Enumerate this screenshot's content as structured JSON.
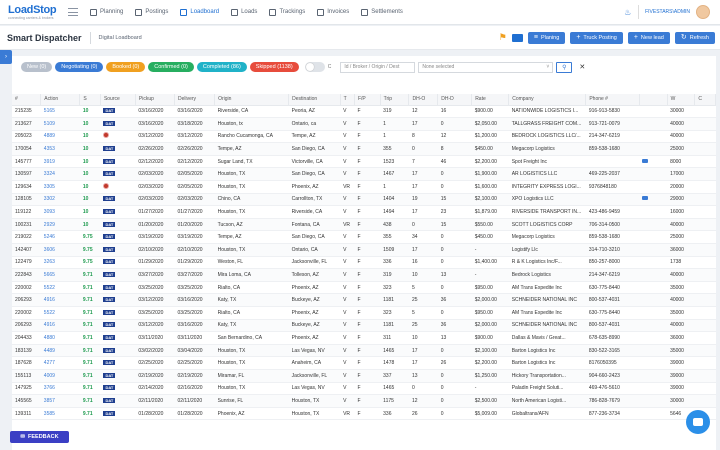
{
  "brand": {
    "name": "LoadStop",
    "tagline": "connecting carriers & brokers"
  },
  "nav": [
    {
      "label": "Planning"
    },
    {
      "label": "Postings"
    },
    {
      "label": "Loadboard"
    },
    {
      "label": "Loads"
    },
    {
      "label": "Trackings"
    },
    {
      "label": "Invoices"
    },
    {
      "label": "Settlements"
    }
  ],
  "user": {
    "name": "FIVESTARS\\ADMIN"
  },
  "page": {
    "title": "Smart Dispatcher",
    "breadcrumb": "Digital Loadboard"
  },
  "actions": {
    "planning": "Planing",
    "truck_posting": "Truck Posting",
    "new_lead": "New lead",
    "refresh": "Refresh"
  },
  "filters": {
    "new": "New (0)",
    "negotiating": "Negotiating (0)",
    "booked": "Booked (0)",
    "confirmed": "Confirmed (0)",
    "completed": "Completed (86)",
    "skipped": "Skipped (1138)",
    "toggle_label": "C",
    "search_placeholder": "Id / Broker / Origin / Dest",
    "select_value": "None selected"
  },
  "colors": {
    "new": "#b8c0cc",
    "negotiating": "#3a7bd5",
    "booked": "#f0a020",
    "confirmed": "#27ae60",
    "completed": "#20b2c8",
    "skipped": "#e74c3c"
  },
  "columns": [
    "#",
    "Action",
    "S",
    "Source",
    "Pickup",
    "Delivery",
    "Origin",
    "Destination",
    "T",
    "F/P",
    "Trip",
    "DH-O",
    "DH-D",
    "Rate",
    "Company",
    "Phone #",
    "",
    "W",
    "C"
  ],
  "rows": [
    [
      "215235",
      "5165",
      "10",
      "DAT",
      "03/16/2020",
      "03/16/2020",
      "Riverside, CA",
      "Peoria, AZ",
      "V",
      "F",
      "319",
      "12",
      "16",
      "$900.00",
      "NATIONWIDE LOGISTICS I...",
      "916-913-5830",
      "",
      "30000",
      ""
    ],
    [
      "213627",
      "5109",
      "10",
      "DAT",
      "03/16/2020",
      "03/18/2020",
      "Houston, tx",
      "Ontario, ca",
      "V",
      "F",
      "1",
      "17",
      "0",
      "$2,050.00",
      "TALLGRASS FREIGHT COM...",
      "913-721-0079",
      "",
      "40000",
      ""
    ],
    [
      "205023",
      "4889",
      "10",
      "TQA",
      "03/12/2020",
      "03/12/2020",
      "Rancho Cucamonga, CA",
      "Tempe, AZ",
      "V",
      "F",
      "1",
      "8",
      "12",
      "$1,200.00",
      "BEDROCK LOGISTICS LLC/...",
      "214-347-6219",
      "",
      "40000",
      ""
    ],
    [
      "170054",
      "4353",
      "10",
      "DAT",
      "02/26/2020",
      "02/26/2020",
      "Tempe, AZ",
      "San Diego, CA",
      "V",
      "F",
      "355",
      "0",
      "8",
      "$450.00",
      "Megacorp Logistics",
      "859-538-1680",
      "",
      "25000",
      ""
    ],
    [
      "145777",
      "3919",
      "10",
      "DAT",
      "02/12/2020",
      "02/12/2020",
      "Sugar Land, TX",
      "Victorville, CA",
      "V",
      "F",
      "1523",
      "7",
      "46",
      "$2,200.00",
      "Spot Freight Inc",
      "",
      "MAIL",
      "8000",
      ""
    ],
    [
      "130597",
      "3324",
      "10",
      "DAT",
      "02/03/2020",
      "02/05/2020",
      "Houston, TX",
      "San Diego, CA",
      "V",
      "F",
      "1467",
      "17",
      "0",
      "$1,900.00",
      "AR LOGISTICS LLC",
      "469-225-2037",
      "",
      "17000",
      ""
    ],
    [
      "129634",
      "3305",
      "10",
      "TQA",
      "02/03/2020",
      "02/05/2020",
      "Houston, TX",
      "Phoenix, AZ",
      "VR",
      "F",
      "1",
      "17",
      "0",
      "$1,600.00",
      "INTEGRITY EXPRESS LOGI...",
      "9376848180",
      "",
      "20000",
      ""
    ],
    [
      "128105",
      "3302",
      "10",
      "DAT",
      "02/03/2020",
      "02/03/2020",
      "Chino, CA",
      "Carrollton, TX",
      "V",
      "F",
      "1404",
      "19",
      "15",
      "$2,100.00",
      "XPO Logistics LLC",
      "",
      "MAIL",
      "29000",
      ""
    ],
    [
      "119122",
      "3093",
      "10",
      "DAT",
      "01/27/2020",
      "01/27/2020",
      "Houston, TX",
      "Riverside, CA",
      "V",
      "F",
      "1494",
      "17",
      "23",
      "$1,879.00",
      "RIVERSIDE TRANSPORT IN...",
      "423-486-9459",
      "",
      "16000",
      ""
    ],
    [
      "100231",
      "2929",
      "10",
      "DAT",
      "01/20/2020",
      "01/20/2020",
      "Tucson, AZ",
      "Fontana, CA",
      "VR",
      "F",
      "438",
      "0",
      "15",
      "$550.00",
      "SCOTT LOGISTICS CORP",
      "706-314-0500",
      "",
      "40000",
      ""
    ],
    [
      "219022",
      "5246",
      "9.75",
      "DAT",
      "03/19/2020",
      "03/19/2020",
      "Tempe, AZ",
      "San Diego, CA",
      "V",
      "F",
      "355",
      "34",
      "0",
      "$450.00",
      "Megacorp Logistics",
      "859-538-1680",
      "",
      "25000",
      ""
    ],
    [
      "142407",
      "3606",
      "9.75",
      "DAT",
      "02/10/2020",
      "02/10/2020",
      "Houston, TX",
      "Ontario, CA",
      "V",
      "F",
      "1509",
      "17",
      "0",
      "-",
      "Logistify Llc",
      "314-710-3210",
      "",
      "36000",
      ""
    ],
    [
      "122479",
      "3263",
      "9.75",
      "DAT",
      "01/29/2020",
      "01/29/2020",
      "Weston, FL",
      "Jacksonville, FL",
      "V",
      "F",
      "336",
      "16",
      "0",
      "$1,400.00",
      "R & K Logistics Inc/F...",
      "850-257-8000",
      "",
      "1738",
      ""
    ],
    [
      "222843",
      "5665",
      "9.71",
      "DAT",
      "03/27/2020",
      "03/27/2020",
      "Mira Loma, CA",
      "Tolleson, AZ",
      "V",
      "F",
      "319",
      "10",
      "13",
      "-",
      "Bedrock Logistics",
      "214-347-6219",
      "",
      "40000",
      ""
    ],
    [
      "220002",
      "5522",
      "9.71",
      "DAT",
      "03/25/2020",
      "03/25/2020",
      "Rialto, CA",
      "Phoenix, AZ",
      "V",
      "F",
      "323",
      "5",
      "0",
      "$950.00",
      "AM Trans Expedite Inc",
      "630-775-8440",
      "",
      "35000",
      ""
    ],
    [
      "206293",
      "4916",
      "9.71",
      "DAT",
      "03/12/2020",
      "03/16/2020",
      "Katy, TX",
      "Buckeye, AZ",
      "V",
      "F",
      "1181",
      "25",
      "36",
      "$2,000.00",
      "SCHNEIDER NATIONAL INC",
      "800-537-4031",
      "",
      "40000",
      ""
    ],
    [
      "220002",
      "5522",
      "9.71",
      "DAT",
      "03/25/2020",
      "03/25/2020",
      "Rialto, CA",
      "Phoenix, AZ",
      "V",
      "F",
      "323",
      "5",
      "0",
      "$950.00",
      "AM Trans Expedite Inc",
      "630-775-8440",
      "",
      "35000",
      ""
    ],
    [
      "206293",
      "4916",
      "9.71",
      "DAT",
      "03/12/2020",
      "03/16/2020",
      "Katy, TX",
      "Buckeye, AZ",
      "V",
      "F",
      "1181",
      "25",
      "36",
      "$2,000.00",
      "SCHNEIDER NATIONAL INC",
      "800-537-4031",
      "",
      "40000",
      ""
    ],
    [
      "204433",
      "4880",
      "9.71",
      "DAT",
      "03/11/2020",
      "03/11/2020",
      "San Bernardino, CA",
      "Phoenix, AZ",
      "V",
      "F",
      "311",
      "10",
      "13",
      "$900.00",
      "Dallas & Mavis / Great...",
      "678-635-8990",
      "",
      "36000",
      ""
    ],
    [
      "183139",
      "4489",
      "9.71",
      "DAT",
      "03/02/2020",
      "03/04/2020",
      "Houston, TX",
      "Las Vegas, NV",
      "V",
      "F",
      "1465",
      "17",
      "0",
      "$2,100.00",
      "Barton Logistics Inc",
      "830-522-3165",
      "",
      "35000",
      ""
    ],
    [
      "187628",
      "4277",
      "9.71",
      "DAT",
      "02/25/2020",
      "02/25/2020",
      "Houston, TX",
      "Anaheim, CA",
      "V",
      "F",
      "1478",
      "17",
      "26",
      "$2,200.00",
      "Barton Logistics Inc",
      "8176050395",
      "",
      "39000",
      ""
    ],
    [
      "155113",
      "4009",
      "9.71",
      "DAT",
      "02/19/2020",
      "02/19/2020",
      "Miramar, FL",
      "Jacksonville, FL",
      "V",
      "F",
      "337",
      "13",
      "0",
      "$1,250.00",
      "Hickory Transportation...",
      "904-660-2423",
      "",
      "39000",
      ""
    ],
    [
      "147925",
      "3766",
      "9.71",
      "DAT",
      "02/14/2020",
      "02/16/2020",
      "Houston, TX",
      "Las Vegas, NV",
      "V",
      "F",
      "1465",
      "0",
      "0",
      "-",
      "Paladin Freight Soluti...",
      "469-476-5610",
      "",
      "39000",
      ""
    ],
    [
      "145565",
      "3857",
      "9.71",
      "DAT",
      "02/11/2020",
      "02/11/2020",
      "Sunrise, FL",
      "Houston, TX",
      "V",
      "F",
      "1175",
      "12",
      "0",
      "$2,500.00",
      "North American Logisti...",
      "786-828-7679",
      "",
      "30000",
      ""
    ],
    [
      "139311",
      "3585",
      "9.71",
      "DAT",
      "01/28/2020",
      "01/28/2020",
      "Phoenix, AZ",
      "Houston, TX",
      "VR",
      "F",
      "336",
      "26",
      "0",
      "$5,009.00",
      "Globaltrans/AFN",
      "877-236-3734",
      "",
      "5646",
      ""
    ]
  ],
  "feedback": "FEEDBACK"
}
